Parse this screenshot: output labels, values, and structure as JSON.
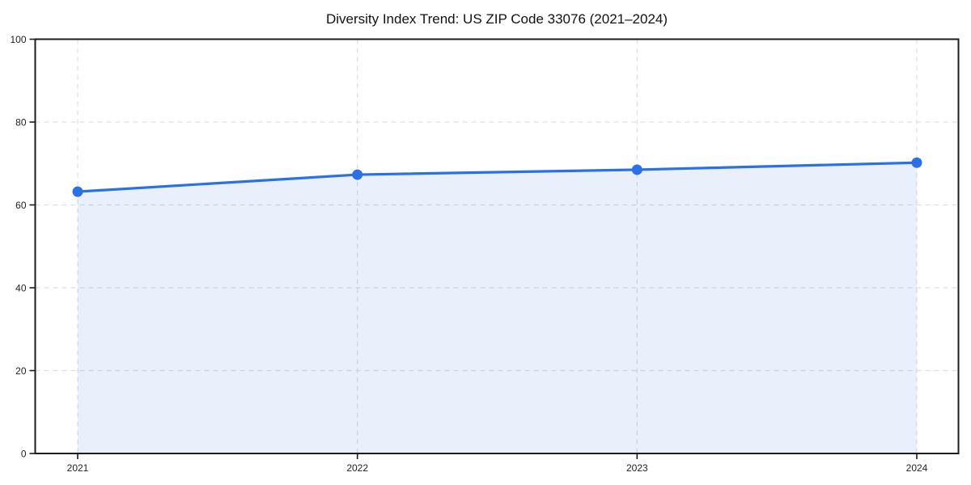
{
  "chart_data": {
    "type": "line",
    "title": "Diversity Index Trend: US ZIP Code 33076 (2021–2024)",
    "x": [
      2021,
      2022,
      2023,
      2024
    ],
    "x_tick_labels": [
      "2021",
      "2022",
      "2023",
      "2024"
    ],
    "series": [
      {
        "name": "Diversity Index",
        "values": [
          63.2,
          67.3,
          68.5,
          70.2
        ]
      }
    ],
    "xlabel": "",
    "ylabel": "",
    "ylim": [
      0,
      100
    ],
    "yticks": [
      0,
      20,
      40,
      60,
      80,
      100
    ],
    "grid": true,
    "grid_line_style": "dashed",
    "legend_position": "none",
    "area_fill": true,
    "marker": "circle",
    "colors": {
      "line": "#2b70e4",
      "marker": "#2b70e4",
      "fill": "#2b70e4",
      "fill_opacity": 0.1,
      "grid": "#dcdfe4",
      "spine": "#1c1c1c",
      "tick": "#1c1c1c",
      "tick_label": "#222222",
      "title": "#111111",
      "background": "#ffffff"
    }
  }
}
